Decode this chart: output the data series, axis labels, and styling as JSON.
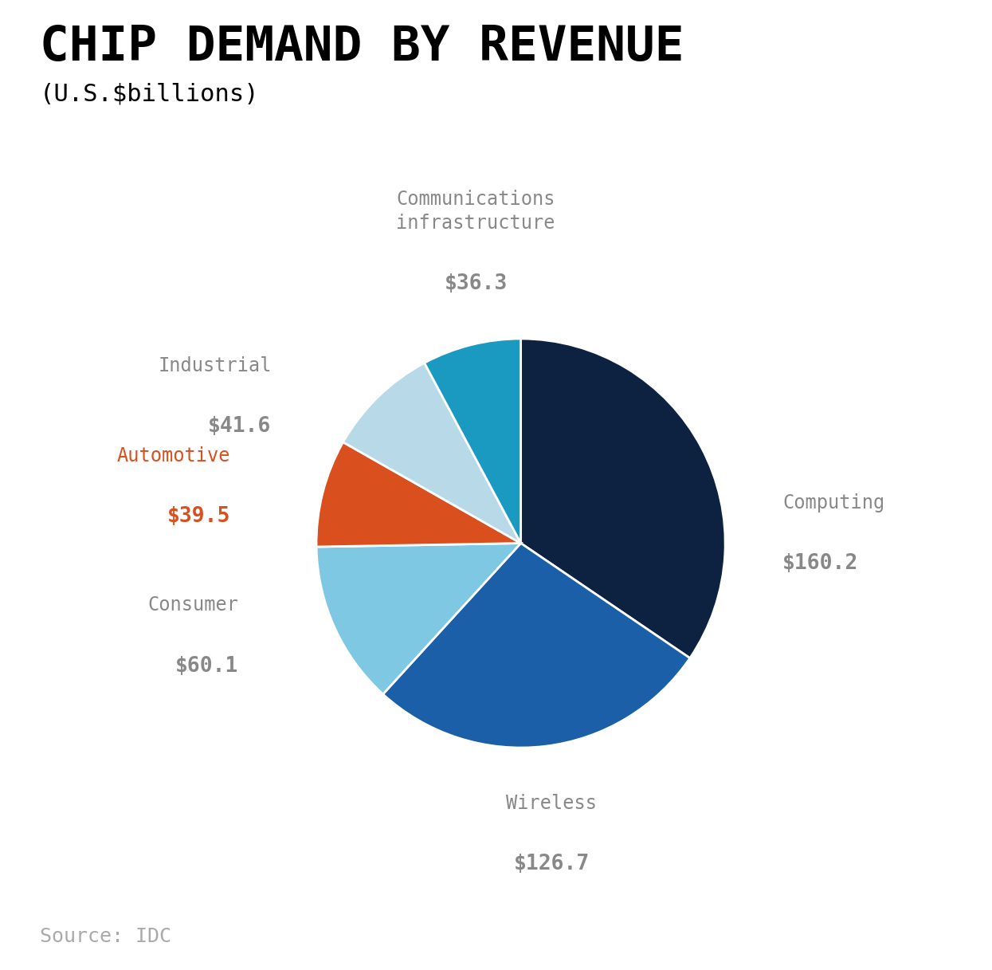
{
  "title": "CHIP DEMAND BY REVENUE",
  "subtitle": "(U.S.$billions)",
  "source": "Source: IDC",
  "slices": [
    {
      "label": "Computing",
      "value": 160.2,
      "color": "#0d2240"
    },
    {
      "label": "Wireless",
      "value": 126.7,
      "color": "#1a5fa8"
    },
    {
      "label": "Consumer",
      "value": 60.1,
      "color": "#7ec8e3"
    },
    {
      "label": "Automotive",
      "value": 39.5,
      "color": "#d94f1e"
    },
    {
      "label": "Industrial",
      "value": 41.6,
      "color": "#b8d9e8"
    },
    {
      "label": "Communications\ninfrastructure",
      "value": 36.3,
      "color": "#1a9ac0"
    }
  ],
  "label_color": "#888888",
  "automotive_color": "#d94f1e",
  "title_color": "#000000",
  "subtitle_color": "#000000",
  "source_color": "#aaaaaa",
  "background_color": "#ffffff",
  "start_angle": 90,
  "label_fontsize": 17,
  "value_fontsize": 19,
  "title_fontsize": 44,
  "subtitle_fontsize": 22,
  "source_fontsize": 18
}
